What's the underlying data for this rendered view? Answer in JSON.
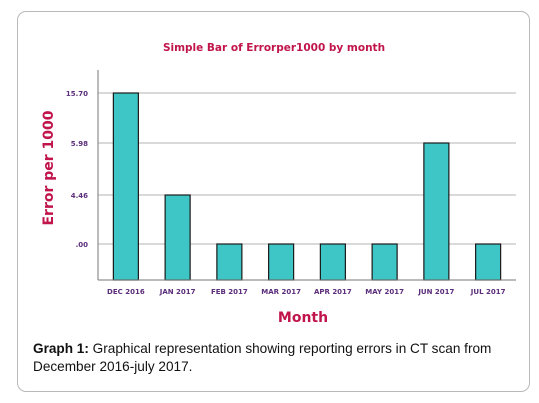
{
  "chart_data": {
    "type": "bar",
    "title": "Simple Bar of Errorper1000 by month",
    "xlabel": "Month",
    "ylabel": "Error per 1000",
    "categories": [
      "DEC 2016",
      "JAN 2017",
      "FEB 2017",
      "MAR 2017",
      "APR 2017",
      "MAY 2017",
      "JUN 2017",
      "JUL 2017"
    ],
    "values": [
      15.7,
      4.46,
      0.0,
      0.0,
      0.0,
      0.0,
      5.98,
      0.0
    ],
    "y_ticks": [
      ".00",
      "4.46",
      "5.98",
      "15.70"
    ],
    "grid": true,
    "colors": {
      "bar": "#3ec6c6",
      "bar_stroke": "#1a1a1a",
      "title": "#c0144b",
      "axis_title": "#c0144b",
      "tick_label": "#5b2d7a",
      "grid": "#9a9a9a"
    }
  },
  "caption": {
    "label": "Graph 1:",
    "text": " Graphical representation showing reporting errors in CT scan from December 2016-july 2017."
  }
}
